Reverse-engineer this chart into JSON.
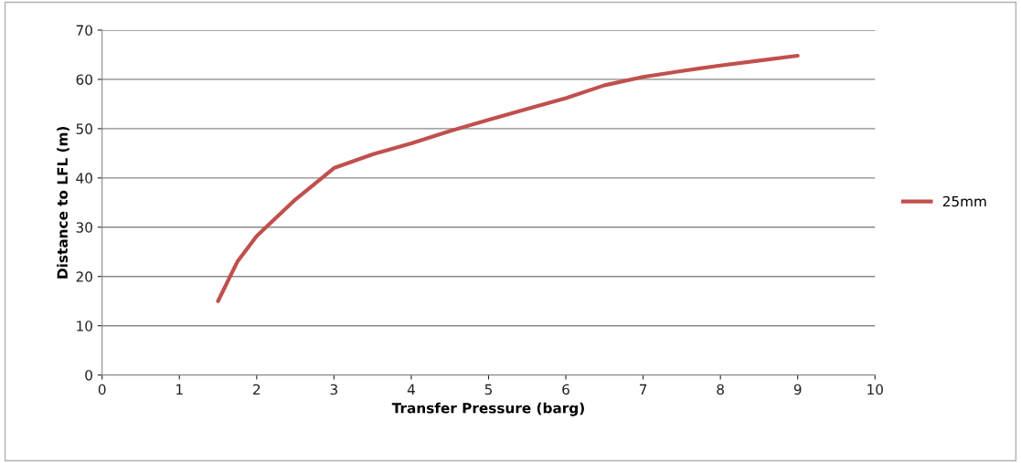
{
  "chart_data": {
    "type": "line",
    "xlabel": "Transfer Pressure (barg)",
    "ylabel": "Distance to LFL (m)",
    "x": [
      1.5,
      1.75,
      2,
      2.5,
      3,
      3.5,
      4,
      4.5,
      5,
      5.5,
      6,
      6.5,
      7,
      7.5,
      8,
      8.5,
      9
    ],
    "series": [
      {
        "name": "25mm",
        "color": "#c0504d",
        "values": [
          15,
          23,
          28.2,
          35.6,
          42,
          44.8,
          47,
          49.5,
          51.8,
          54,
          56.2,
          58.8,
          60.5,
          61.7,
          62.8,
          63.8,
          64.8
        ]
      }
    ],
    "xlim": [
      0,
      10
    ],
    "ylim": [
      0,
      70
    ],
    "xticks": [
      0,
      1,
      2,
      3,
      4,
      5,
      6,
      7,
      8,
      9,
      10
    ],
    "yticks": [
      0,
      10,
      20,
      30,
      40,
      50,
      60,
      70
    ],
    "grid": "y",
    "legend": "right",
    "marker": "none",
    "line_style": "solid"
  }
}
